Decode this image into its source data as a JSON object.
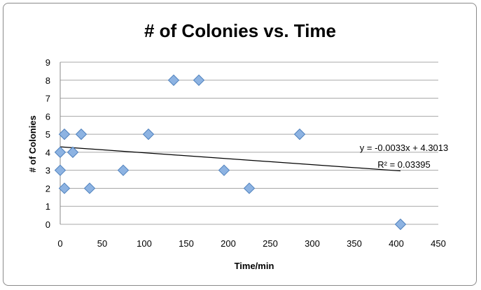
{
  "chart_data": {
    "type": "scatter",
    "title": "# of Colonies vs. Time",
    "xlabel": "Time/min",
    "ylabel": "# of Colonies",
    "xlim": [
      0,
      450
    ],
    "ylim": [
      0,
      9
    ],
    "xticks": [
      0,
      50,
      100,
      150,
      200,
      250,
      300,
      350,
      400,
      450
    ],
    "yticks": [
      0,
      1,
      2,
      3,
      4,
      5,
      6,
      7,
      8,
      9
    ],
    "grid": "horizontal",
    "legend": "none",
    "marker_color": "#8DB3E2",
    "marker_edge_color": "#4F81BD",
    "points": [
      {
        "x": 0,
        "y": 4
      },
      {
        "x": 0,
        "y": 3
      },
      {
        "x": 5,
        "y": 5
      },
      {
        "x": 5,
        "y": 2
      },
      {
        "x": 15,
        "y": 4
      },
      {
        "x": 25,
        "y": 5
      },
      {
        "x": 35,
        "y": 2
      },
      {
        "x": 75,
        "y": 3
      },
      {
        "x": 105,
        "y": 5
      },
      {
        "x": 135,
        "y": 8
      },
      {
        "x": 165,
        "y": 8
      },
      {
        "x": 195,
        "y": 3
      },
      {
        "x": 225,
        "y": 2
      },
      {
        "x": 285,
        "y": 5
      },
      {
        "x": 405,
        "y": 0
      }
    ],
    "trendline": {
      "slope": -0.0033,
      "intercept": 4.3013,
      "x_range": [
        0,
        405
      ],
      "equation": "y = -0.0033x + 4.3013",
      "r_squared": "R² = 0.03395"
    }
  }
}
